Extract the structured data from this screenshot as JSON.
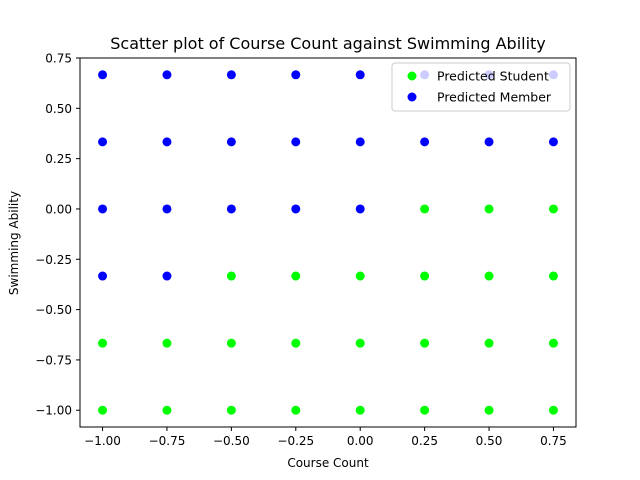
{
  "chart_data": {
    "type": "scatter",
    "title": "Scatter plot of Course Count against Swimming Ability",
    "xlabel": "Course Count",
    "ylabel": "Swimming Ability",
    "xlim": [
      -1.0875,
      0.8375
    ],
    "ylim": [
      -1.0833,
      0.75
    ],
    "grid": false,
    "legend_position": "top-right",
    "xticks": [
      -1.0,
      -0.75,
      -0.5,
      -0.25,
      0.0,
      0.25,
      0.5,
      0.75
    ],
    "xtick_labels": [
      "−1.00",
      "−0.75",
      "−0.50",
      "−0.25",
      "0.00",
      "0.25",
      "0.50",
      "0.75"
    ],
    "yticks": [
      -1.0,
      -0.75,
      -0.5,
      -0.25,
      0.0,
      0.25,
      0.5,
      0.75
    ],
    "ytick_labels": [
      "−1.00",
      "−0.75",
      "−0.50",
      "−0.25",
      "0.00",
      "0.25",
      "0.50",
      "0.75"
    ],
    "series": [
      {
        "name": "Predicted Student",
        "color": "#00ff00",
        "points": [
          [
            -1.0,
            -1.0
          ],
          [
            -0.75,
            -1.0
          ],
          [
            -0.5,
            -1.0
          ],
          [
            -0.25,
            -1.0
          ],
          [
            0.0,
            -1.0
          ],
          [
            0.25,
            -1.0
          ],
          [
            0.5,
            -1.0
          ],
          [
            0.75,
            -1.0
          ],
          [
            -1.0,
            -0.6667
          ],
          [
            -0.75,
            -0.6667
          ],
          [
            -0.5,
            -0.6667
          ],
          [
            -0.25,
            -0.6667
          ],
          [
            0.0,
            -0.6667
          ],
          [
            0.25,
            -0.6667
          ],
          [
            0.5,
            -0.6667
          ],
          [
            0.75,
            -0.6667
          ],
          [
            -0.5,
            -0.3333
          ],
          [
            -0.25,
            -0.3333
          ],
          [
            0.0,
            -0.3333
          ],
          [
            0.25,
            -0.3333
          ],
          [
            0.5,
            -0.3333
          ],
          [
            0.75,
            -0.3333
          ],
          [
            0.25,
            0.0
          ],
          [
            0.5,
            0.0
          ],
          [
            0.75,
            0.0
          ]
        ]
      },
      {
        "name": "Predicted Member",
        "color": "#0000ff",
        "points": [
          [
            -1.0,
            -0.3333
          ],
          [
            -0.75,
            -0.3333
          ],
          [
            -1.0,
            0.0
          ],
          [
            -0.75,
            0.0
          ],
          [
            -0.5,
            0.0
          ],
          [
            -0.25,
            0.0
          ],
          [
            0.0,
            0.0
          ],
          [
            -1.0,
            0.3333
          ],
          [
            -0.75,
            0.3333
          ],
          [
            -0.5,
            0.3333
          ],
          [
            -0.25,
            0.3333
          ],
          [
            0.0,
            0.3333
          ],
          [
            0.25,
            0.3333
          ],
          [
            0.5,
            0.3333
          ],
          [
            0.75,
            0.3333
          ],
          [
            -1.0,
            0.6667
          ],
          [
            -0.75,
            0.6667
          ],
          [
            -0.5,
            0.6667
          ],
          [
            -0.25,
            0.6667
          ],
          [
            0.0,
            0.6667
          ],
          [
            0.25,
            0.6667
          ],
          [
            0.5,
            0.6667
          ],
          [
            0.75,
            0.6667
          ]
        ]
      }
    ]
  }
}
